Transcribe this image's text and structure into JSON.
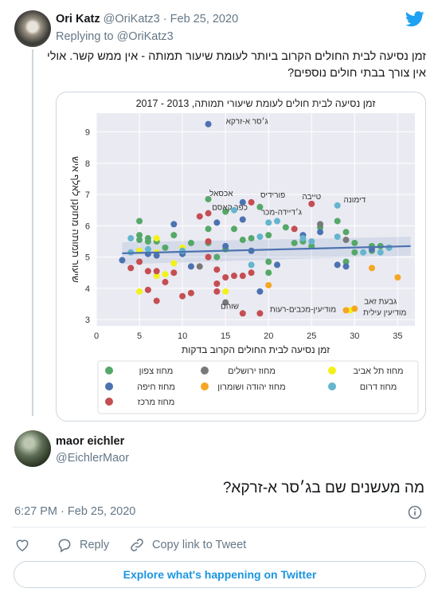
{
  "tweet": {
    "name": "Ori Katz",
    "handle": "@OriKatz3",
    "separator": "·",
    "date": "Feb 25, 2020",
    "replying_label": "Replying to",
    "replying_handle": "@OriKatz3",
    "text_line1": "זמן נסיעה לבית החולים הקרוב ביותר לעומת שיעור תמותה - אין ממש קשר. אולי",
    "text_line2": "אין צורך בבתי חולים נוספים?"
  },
  "reply": {
    "name": "maor eichler",
    "handle": "@EichlerMaor",
    "text": "מה מעשנים שם בג׳סר א-זרקא?",
    "time": "6:27 PM",
    "separator": "·",
    "date": "Feb 25, 2020"
  },
  "actions": {
    "reply_label": "Reply",
    "copy_label": "Copy link to Tweet"
  },
  "explore_label": "Explore what's happening on Twitter",
  "icons": {
    "brand": "twitter-bird-icon",
    "info": "info-icon",
    "like": "heart-icon",
    "reply": "speech-bubble-icon",
    "copy": "link-icon"
  },
  "colors": {
    "twitter_blue": "#1da1f2",
    "link_blue": "#1b95e0",
    "north": "#55a868",
    "jerusalem": "#797979",
    "tel_aviv": "#f2f21a",
    "haifa": "#4c72b0",
    "judea": "#f5a623",
    "south": "#64b5cd",
    "center": "#c44e52",
    "trend": "#4c72b0"
  },
  "chart_data": {
    "type": "scatter",
    "title": "זמן נסיעה לבית חולים לעומת שיעורי תמותה, 2013 - 2017",
    "xlabel": "זמן נסיעה לבית החולים הקרוב בדקות",
    "ylabel": "שיעור תמותה מתוקנן לאלף איש",
    "xlim": [
      0,
      37
    ],
    "ylim": [
      2.8,
      9.6
    ],
    "xticks": [
      0,
      5,
      10,
      15,
      20,
      25,
      30,
      35
    ],
    "yticks": [
      3,
      4,
      5,
      6,
      7,
      8,
      9
    ],
    "grid": true,
    "legend_position": "bottom",
    "trend_line": {
      "x": [
        3,
        36.5
      ],
      "y": [
        5.12,
        5.35
      ]
    },
    "legend": [
      {
        "key": "north",
        "label": "מחוז צפון"
      },
      {
        "key": "jerusalem",
        "label": "מחוז ירושלים"
      },
      {
        "key": "tel_aviv",
        "label": "מחוז תל אביב"
      },
      {
        "key": "haifa",
        "label": "מחוז חיפה"
      },
      {
        "key": "judea",
        "label": "מחוז יהודה ושומרון"
      },
      {
        "key": "south",
        "label": "מחוז דרום"
      },
      {
        "key": "center",
        "label": "מחוז מרכז"
      }
    ],
    "annotations": [
      {
        "text": "ג׳סר א-זרקא",
        "x": 17.5,
        "y": 9.25
      },
      {
        "text": "אכסאל",
        "x": 14.5,
        "y": 6.95
      },
      {
        "text": "פורידיס",
        "x": 20.5,
        "y": 6.9
      },
      {
        "text": "טייבה",
        "x": 25,
        "y": 6.85
      },
      {
        "text": "דימונה",
        "x": 30,
        "y": 6.75
      },
      {
        "text": "כפר קאסם",
        "x": 15.5,
        "y": 6.5
      },
      {
        "text": "ג׳דיידה-מכר",
        "x": 21.5,
        "y": 6.35
      },
      {
        "text": "גבעת זאב",
        "x": 33,
        "y": 3.5
      },
      {
        "text": "מודיעין-מכבים-רעות",
        "x": 24,
        "y": 3.25
      },
      {
        "text": "מודיעין עילית",
        "x": 33.5,
        "y": 3.15
      },
      {
        "text": "שוהם",
        "x": 15.5,
        "y": 3.35
      }
    ],
    "series": [
      {
        "name": "מחוז צפון",
        "color_key": "north",
        "points": [
          [
            5,
            6.15
          ],
          [
            5,
            5.7
          ],
          [
            5,
            5.55
          ],
          [
            5,
            5.2
          ],
          [
            6,
            5.5
          ],
          [
            6,
            5.6
          ],
          [
            7,
            5.5
          ],
          [
            8,
            5.3
          ],
          [
            9,
            5.7
          ],
          [
            11,
            5.45
          ],
          [
            13,
            5.9
          ],
          [
            13,
            5.45
          ],
          [
            14,
            5.0
          ],
          [
            15,
            5.25
          ],
          [
            16,
            5.9
          ],
          [
            13,
            6.85
          ],
          [
            15,
            6.45
          ],
          [
            17,
            5.55
          ],
          [
            18,
            5.6
          ],
          [
            19,
            6.6
          ],
          [
            20,
            5.7
          ],
          [
            20,
            4.85
          ],
          [
            20,
            4.5
          ],
          [
            22,
            5.95
          ],
          [
            23,
            5.45
          ],
          [
            24,
            5.5
          ],
          [
            25,
            5.35
          ],
          [
            26,
            5.95
          ],
          [
            28,
            6.15
          ],
          [
            29,
            5.8
          ],
          [
            29,
            4.85
          ],
          [
            30,
            5.45
          ],
          [
            30,
            5.15
          ],
          [
            32,
            5.35
          ],
          [
            32,
            5.2
          ],
          [
            33,
            5.35
          ],
          [
            34,
            5.3
          ]
        ]
      },
      {
        "name": "מחוז ירושלים",
        "color_key": "jerusalem",
        "points": [
          [
            12,
            4.7
          ],
          [
            15,
            3.55
          ],
          [
            26,
            6.05
          ],
          [
            29,
            5.55
          ]
        ]
      },
      {
        "name": "מחוז תל אביב",
        "color_key": "tel_aviv",
        "points": [
          [
            5,
            3.9
          ],
          [
            5,
            5.2
          ],
          [
            7,
            5.6
          ],
          [
            7,
            5.15
          ],
          [
            7,
            4.4
          ],
          [
            8,
            4.45
          ],
          [
            9,
            4.8
          ],
          [
            10,
            5.3
          ],
          [
            15,
            3.9
          ],
          [
            29.5,
            3.3
          ]
        ]
      },
      {
        "name": "מחוז חיפה",
        "color_key": "haifa",
        "points": [
          [
            3,
            4.9
          ],
          [
            6,
            5.1
          ],
          [
            7,
            5.05
          ],
          [
            9,
            6.05
          ],
          [
            10,
            5.1
          ],
          [
            11,
            4.7
          ],
          [
            13,
            9.25
          ],
          [
            14,
            6.1
          ],
          [
            15,
            5.35
          ],
          [
            17,
            6.2
          ],
          [
            17,
            6.75
          ],
          [
            18,
            5.2
          ],
          [
            19,
            3.9
          ],
          [
            21,
            4.75
          ],
          [
            24,
            5.7
          ],
          [
            26,
            5.8
          ],
          [
            28,
            4.75
          ],
          [
            29,
            4.7
          ],
          [
            32,
            5.25
          ]
        ]
      },
      {
        "name": "מחוז יהודה ושומרון",
        "color_key": "judea",
        "points": [
          [
            20,
            4.1
          ],
          [
            29,
            3.3
          ],
          [
            30,
            3.35
          ],
          [
            32,
            4.65
          ],
          [
            35,
            4.35
          ]
        ]
      },
      {
        "name": "מחוז דרום",
        "color_key": "south",
        "points": [
          [
            4,
            5.6
          ],
          [
            4,
            5.15
          ],
          [
            6,
            5.25
          ],
          [
            10,
            5.2
          ],
          [
            16,
            6.5
          ],
          [
            18,
            4.75
          ],
          [
            19,
            5.65
          ],
          [
            20,
            6.1
          ],
          [
            21,
            6.15
          ],
          [
            24,
            5.6
          ],
          [
            25,
            5.5
          ],
          [
            28,
            5.65
          ],
          [
            28,
            6.65
          ],
          [
            31,
            5.15
          ],
          [
            33,
            5.15
          ],
          [
            34,
            5.3
          ]
        ]
      },
      {
        "name": "מחוז מרכז",
        "color_key": "center",
        "points": [
          [
            4,
            4.65
          ],
          [
            5,
            4.85
          ],
          [
            6,
            3.95
          ],
          [
            6,
            4.55
          ],
          [
            7,
            3.6
          ],
          [
            7,
            4.55
          ],
          [
            8,
            4.2
          ],
          [
            9,
            4.5
          ],
          [
            10,
            3.75
          ],
          [
            11,
            3.85
          ],
          [
            12,
            6.3
          ],
          [
            13,
            5.5
          ],
          [
            13,
            5.0
          ],
          [
            13,
            6.4
          ],
          [
            14,
            4.6
          ],
          [
            14,
            4.15
          ],
          [
            14,
            3.9
          ],
          [
            15,
            4.35
          ],
          [
            16,
            4.4
          ],
          [
            17,
            4.4
          ],
          [
            17,
            3.2
          ],
          [
            18,
            6.75
          ],
          [
            18,
            4.5
          ],
          [
            19,
            3.2
          ],
          [
            23,
            5.9
          ],
          [
            25,
            6.7
          ]
        ]
      }
    ]
  }
}
